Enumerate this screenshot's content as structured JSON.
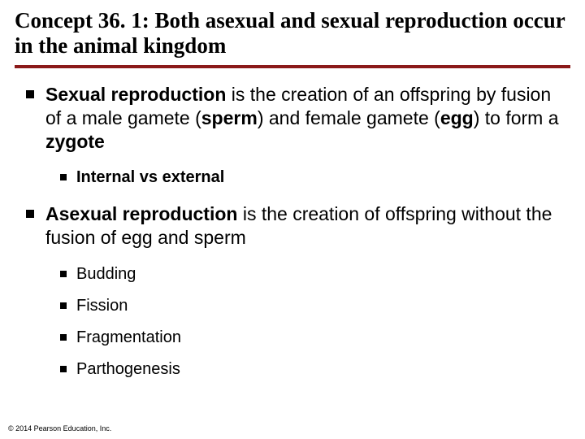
{
  "colors": {
    "rule": "#8b1a1a",
    "bullet": "#000000",
    "background": "#ffffff",
    "text": "#000000"
  },
  "typography": {
    "title_font": "Times New Roman",
    "title_size_pt": 27,
    "title_weight": "bold",
    "body_font": "Arial",
    "lvl1_size_pt": 23,
    "lvl2_size_pt": 20,
    "footer_size_pt": 9
  },
  "title": "Concept 36. 1: Both asexual and sexual reproduction occur in the animal kingdom",
  "bullets": {
    "b1": {
      "bold1": "Sexual reproduction",
      "t1": " is the creation of an offspring by fusion of a male gamete (",
      "bold2": "sperm",
      "t2": ") and female gamete (",
      "bold3": "egg",
      "t3": ") to form a ",
      "bold4": "zygote",
      "sub": {
        "s1": "Internal vs external"
      }
    },
    "b2": {
      "bold1": "Asexual reproduction",
      "t1": " is the creation of offspring without the fusion of egg and sperm",
      "sub": {
        "s1": "Budding",
        "s2": "Fission",
        "s3": "Fragmentation",
        "s4": "Parthogenesis"
      }
    }
  },
  "footer": "© 2014 Pearson Education, Inc."
}
